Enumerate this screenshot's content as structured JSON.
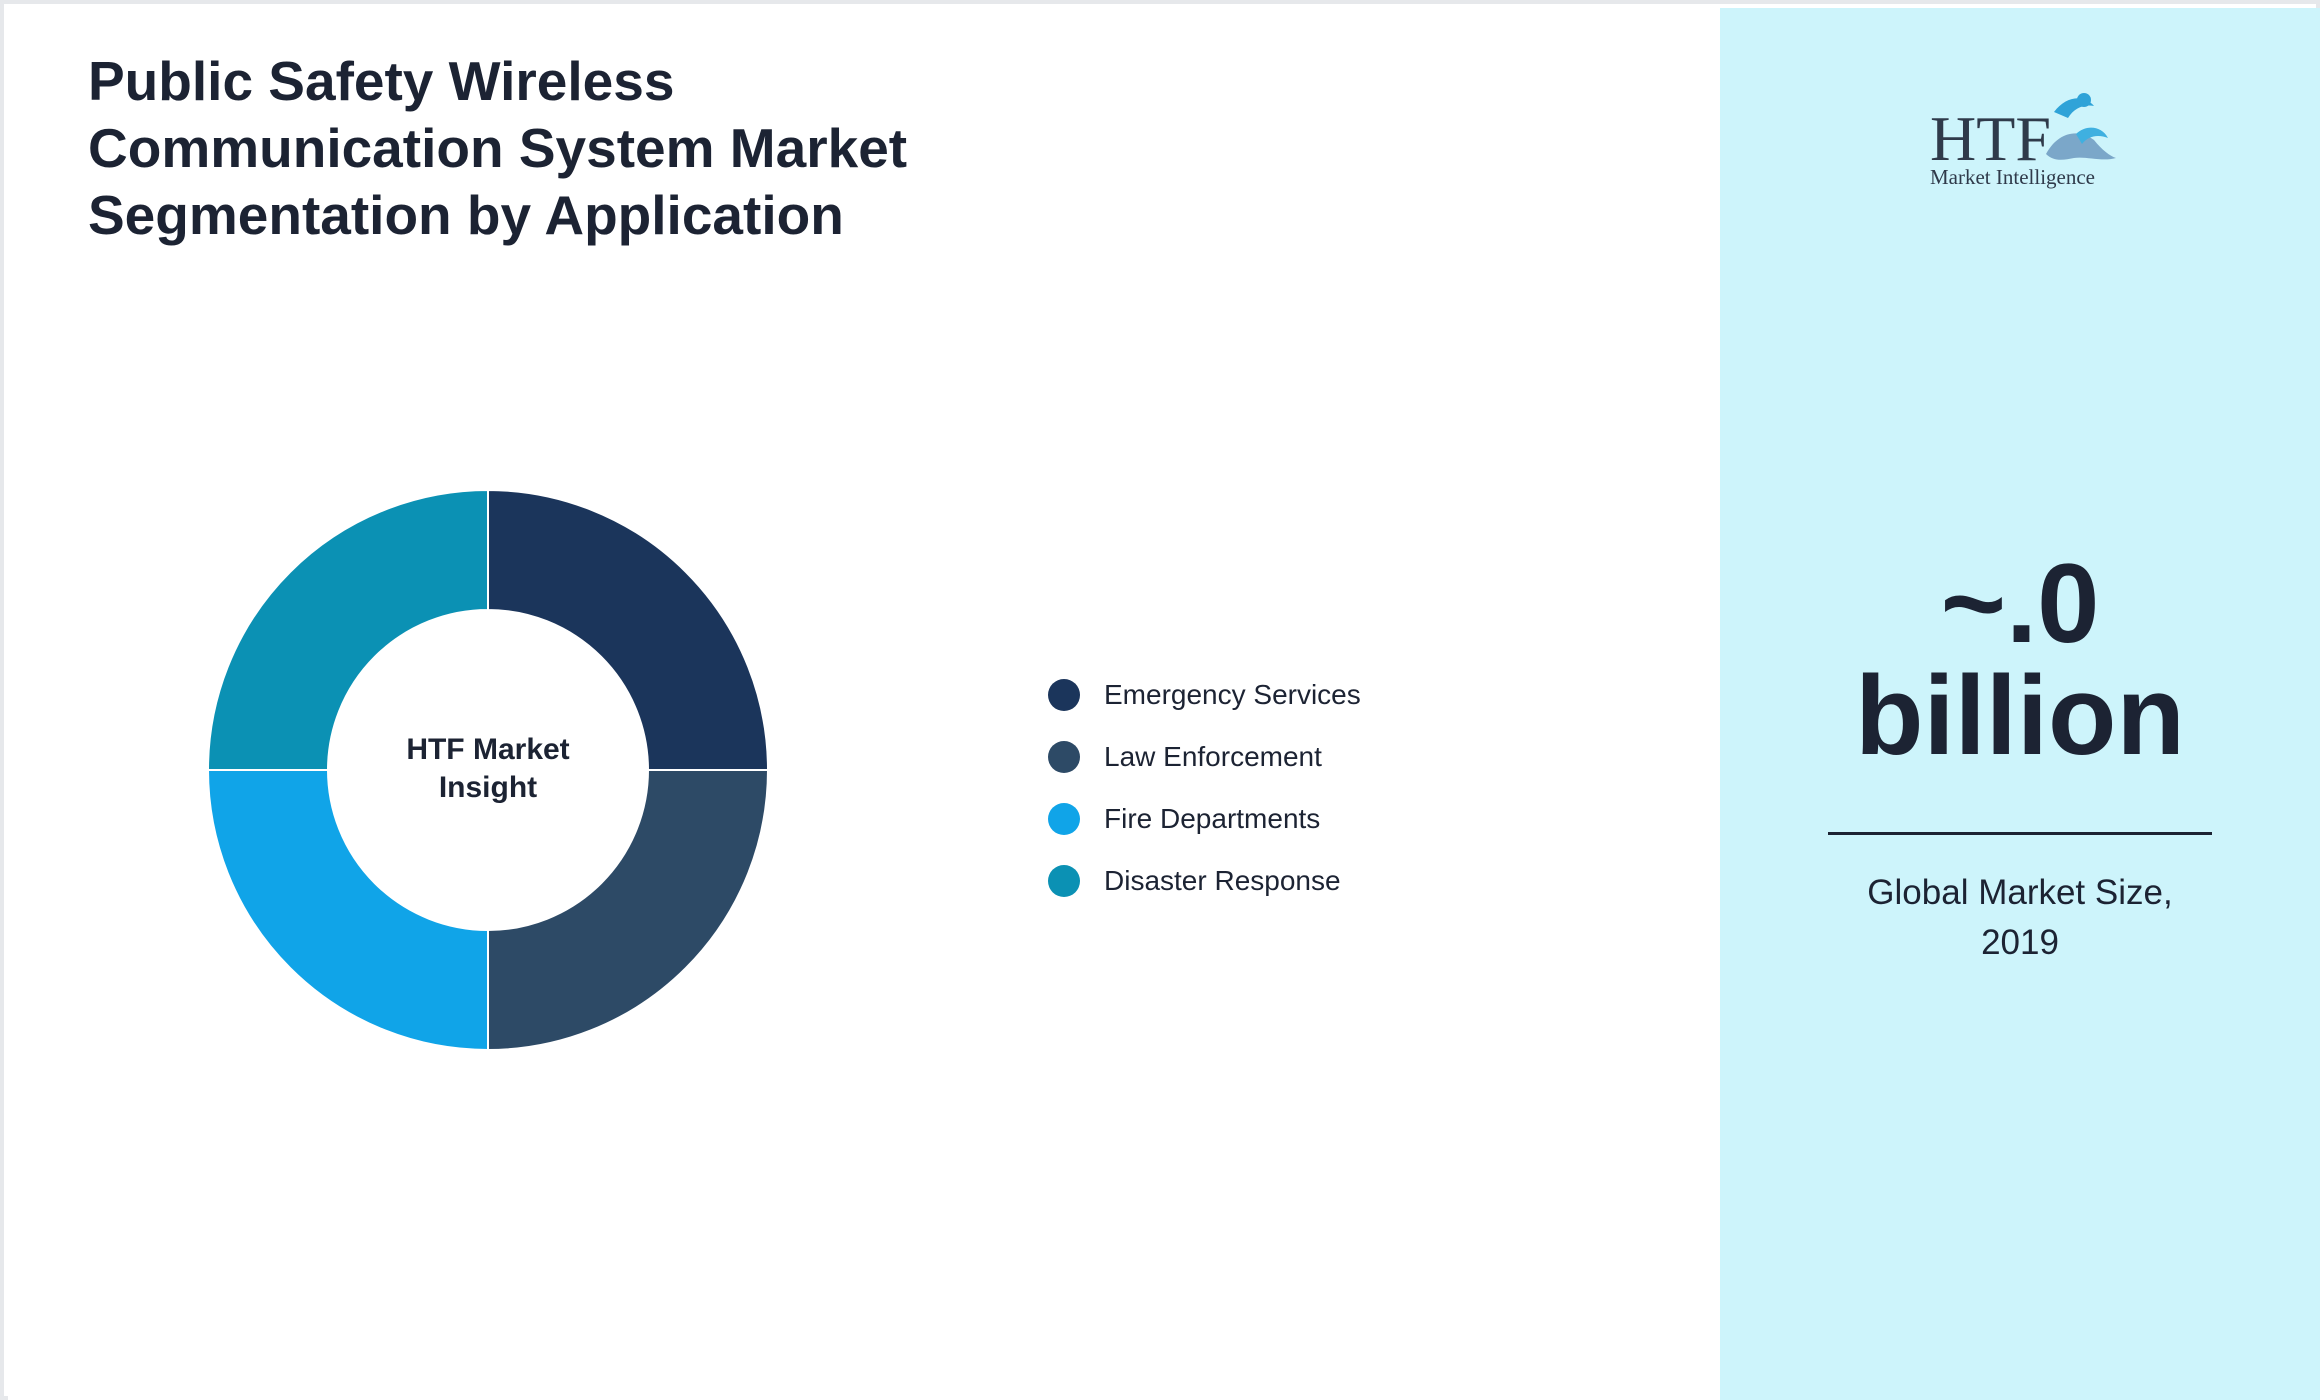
{
  "title_lines": [
    "Public Safety Wireless",
    "Communication System Market",
    "Segmentation by Application"
  ],
  "chart_data": {
    "type": "pie",
    "donut": true,
    "title": "Public Safety Wireless Communication System Market Segmentation by Application",
    "center_label_lines": [
      "HTF Market",
      "Insight"
    ],
    "categories": [
      "Emergency Services",
      "Law Enforcement",
      "Fire Departments",
      "Disaster Response"
    ],
    "values": [
      25,
      25,
      25,
      25
    ],
    "colors": [
      "#1b355b",
      "#2d4a66",
      "#10a4e8",
      "#0b91b4"
    ],
    "legend_position": "right"
  },
  "side_panel": {
    "logo": {
      "text_main": "HTF",
      "text_sub": "Market Intelligence",
      "icon": "htf-logo-icon"
    },
    "value_lines": [
      "~.0",
      "billion"
    ],
    "caption_lines": [
      "Global Market Size,",
      "2019"
    ],
    "background_color": "#cdf4fb"
  }
}
